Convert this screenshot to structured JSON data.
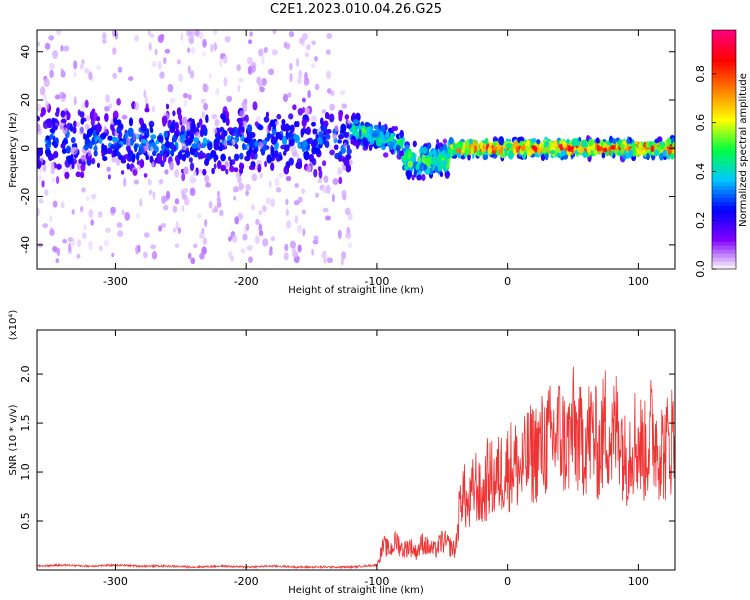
{
  "chart_data": [
    {
      "type": "heatmap",
      "title": "C2E1.2023.010.04.26.G25",
      "xlabel": "Height of straight line (km)",
      "ylabel": "Frequency (Hz)",
      "colorbar_label": "Normalized spectral amplitude",
      "xlim": [
        -360,
        128
      ],
      "ylim": [
        -50,
        49
      ],
      "x_ticks": [
        -300,
        -200,
        -100,
        0,
        100
      ],
      "y_ticks": [
        -40,
        -20,
        0,
        20,
        40
      ],
      "colorbar_range": [
        0,
        0.98
      ],
      "colorbar_ticks": [
        0.0,
        0.2,
        0.4,
        0.6,
        0.8
      ],
      "colormap": [
        "#ffffff",
        "#8000ff",
        "#0000ff",
        "#00c8ff",
        "#00ff40",
        "#ffff00",
        "#ff8000",
        "#ff0000",
        "#ff0080"
      ],
      "regions": [
        {
          "x": [
            -360,
            -120
          ],
          "center_freq": 3,
          "core_halfwidth_hz": 12,
          "spread_hz": 50,
          "peak_amplitude": 0.3
        },
        {
          "x": [
            -120,
            -80
          ],
          "center_freq_start": 8,
          "center_freq_end": 2,
          "core_halfwidth_hz": 5,
          "peak_amplitude": 0.5
        },
        {
          "x": [
            -80,
            -45
          ],
          "center_freq": -5,
          "core_halfwidth_hz": 6,
          "peak_amplitude": 0.6
        },
        {
          "x": [
            -45,
            128
          ],
          "center_freq": 0,
          "core_halfwidth_hz": 3,
          "peak_amplitude": 0.95
        }
      ]
    },
    {
      "type": "line",
      "xlabel": "Height of straight line (km)",
      "ylabel": "SNR (10 * v/v)",
      "y_multiplier": "(x10⁴)",
      "color": "#ee3333",
      "xlim": [
        -360,
        128
      ],
      "ylim": [
        0,
        2.45
      ],
      "x_ticks": [
        -300,
        -200,
        -100,
        0,
        100
      ],
      "y_ticks": [
        0.5,
        1.0,
        1.5,
        2.0
      ],
      "x": [
        -360,
        -340,
        -320,
        -300,
        -280,
        -260,
        -240,
        -220,
        -200,
        -180,
        -160,
        -140,
        -120,
        -110,
        -100,
        -95,
        -90,
        -85,
        -80,
        -75,
        -70,
        -65,
        -60,
        -55,
        -50,
        -45,
        -40,
        -35,
        -30,
        -25,
        -20,
        -15,
        -10,
        -5,
        0,
        5,
        10,
        15,
        20,
        25,
        30,
        35,
        40,
        45,
        50,
        55,
        60,
        65,
        70,
        75,
        80,
        85,
        90,
        95,
        100,
        105,
        110,
        115,
        120,
        125
      ],
      "values": [
        0.04,
        0.05,
        0.04,
        0.05,
        0.04,
        0.04,
        0.03,
        0.04,
        0.03,
        0.04,
        0.03,
        0.03,
        0.03,
        0.04,
        0.05,
        0.25,
        0.2,
        0.3,
        0.2,
        0.25,
        0.18,
        0.28,
        0.22,
        0.2,
        0.3,
        0.25,
        0.2,
        0.85,
        0.6,
        0.9,
        0.7,
        0.95,
        0.9,
        1.0,
        1.05,
        1.1,
        1.0,
        1.15,
        1.2,
        1.25,
        1.3,
        1.35,
        1.4,
        1.25,
        1.45,
        1.3,
        1.35,
        1.4,
        1.2,
        1.5,
        1.3,
        1.55,
        1.1,
        1.35,
        1.3,
        1.2,
        1.4,
        1.3,
        1.2,
        1.35
      ]
    }
  ]
}
